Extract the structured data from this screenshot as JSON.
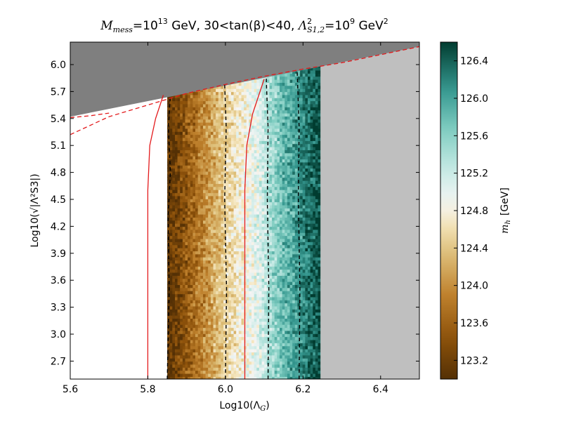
{
  "chart_data": {
    "type": "heatmap",
    "title_parts": {
      "m_sym": "M",
      "m_sub": "mess",
      "eq": "=",
      "m_base": "10",
      "m_exp": "13",
      "unit1": " GeV, ",
      "tb_low": "30",
      "lt": "<",
      "tb_mid": "tan(β)",
      "tb_high": "40",
      "sep": ", ",
      "lam_sym": "Λ",
      "lam_sup": "2",
      "lam_sub": "S1,2",
      "lam_base": "10",
      "lam_exp": "9",
      "unit2": " GeV",
      "unit2_sup": "2"
    },
    "xlabel": "Log10(Λ",
    "xlabel_sub": "G",
    "xlabel_close": ")",
    "ylabel": "Log10(√|Λ²S3|)",
    "colorbar_label": "m",
    "colorbar_label_sub": "h",
    "colorbar_unit": "[GeV]",
    "xlim": [
      5.6,
      6.5
    ],
    "ylim": [
      2.5,
      6.25
    ],
    "x_ticks": [
      "5.6",
      "5.8",
      "6.0",
      "6.2",
      "6.4"
    ],
    "y_ticks": [
      "2.7",
      "3.0",
      "3.3",
      "3.6",
      "3.9",
      "4.2",
      "4.5",
      "4.8",
      "5.1",
      "5.4",
      "5.7",
      "6.0"
    ],
    "colorbar_range": [
      123.0,
      126.6
    ],
    "colorbar_ticks": [
      "123.2",
      "123.6",
      "124.0",
      "124.4",
      "124.8",
      "125.2",
      "125.6",
      "126.0",
      "126.4"
    ],
    "mh_profile": {
      "x": [
        5.85,
        5.88,
        5.92,
        5.96,
        6.0,
        6.03,
        6.06,
        6.09,
        6.12,
        6.15,
        6.18,
        6.21,
        6.24
      ],
      "values": [
        123.0,
        123.3,
        123.7,
        124.1,
        124.5,
        124.7,
        124.9,
        125.1,
        125.5,
        125.8,
        126.0,
        126.3,
        126.5
      ]
    },
    "populated_x_range": [
      5.85,
      6.245
    ],
    "upper_boundary": {
      "x": [
        5.6,
        6.5
      ],
      "y": [
        5.42,
        6.2
      ]
    },
    "excluded_region_color": "#7f7f7f",
    "no_data_region_color": "#bfbfbf",
    "red_solid_contours": [
      {
        "x": [
          5.8,
          5.8,
          5.805,
          5.82,
          5.84
        ],
        "y": [
          2.5,
          4.6,
          5.1,
          5.4,
          5.66
        ]
      },
      {
        "x": [
          6.05,
          6.05,
          6.055,
          6.07,
          6.1
        ],
        "y": [
          2.5,
          4.6,
          5.1,
          5.45,
          5.84
        ]
      }
    ],
    "red_dashed_contours": [
      {
        "x": [
          5.6,
          5.7,
          5.8,
          5.9,
          6.0,
          6.1,
          6.2,
          6.3,
          6.5
        ],
        "y": [
          5.22,
          5.42,
          5.55,
          5.68,
          5.78,
          5.87,
          5.95,
          6.02,
          6.2
        ]
      },
      {
        "x": [
          5.6,
          5.65,
          5.7
        ],
        "y": [
          5.41,
          5.43,
          5.46
        ]
      }
    ],
    "black_dashed_contours": [
      {
        "x": [
          5.85,
          5.855,
          5.852,
          5.858,
          5.853,
          5.858
        ],
        "y": [
          2.5,
          3.5,
          4.3,
          4.8,
          5.3,
          5.66
        ]
      },
      {
        "x": [
          6.0,
          6.003,
          5.998,
          6.002,
          5.998
        ],
        "y": [
          2.5,
          3.5,
          4.5,
          5.3,
          5.78
        ]
      },
      {
        "x": [
          6.11,
          6.112,
          6.108,
          6.11,
          6.105
        ],
        "y": [
          2.5,
          3.5,
          4.5,
          5.3,
          5.87
        ]
      },
      {
        "x": [
          6.19,
          6.192,
          6.188,
          6.19,
          6.185
        ],
        "y": [
          2.5,
          3.5,
          4.5,
          5.3,
          5.93
        ]
      }
    ],
    "colors": {
      "brbg_low": "#543005",
      "brbg_mid": "#f5f5f5",
      "brbg_high": "#003c30",
      "red_contour": "#e31a1c",
      "black_contour": "#000000"
    }
  }
}
